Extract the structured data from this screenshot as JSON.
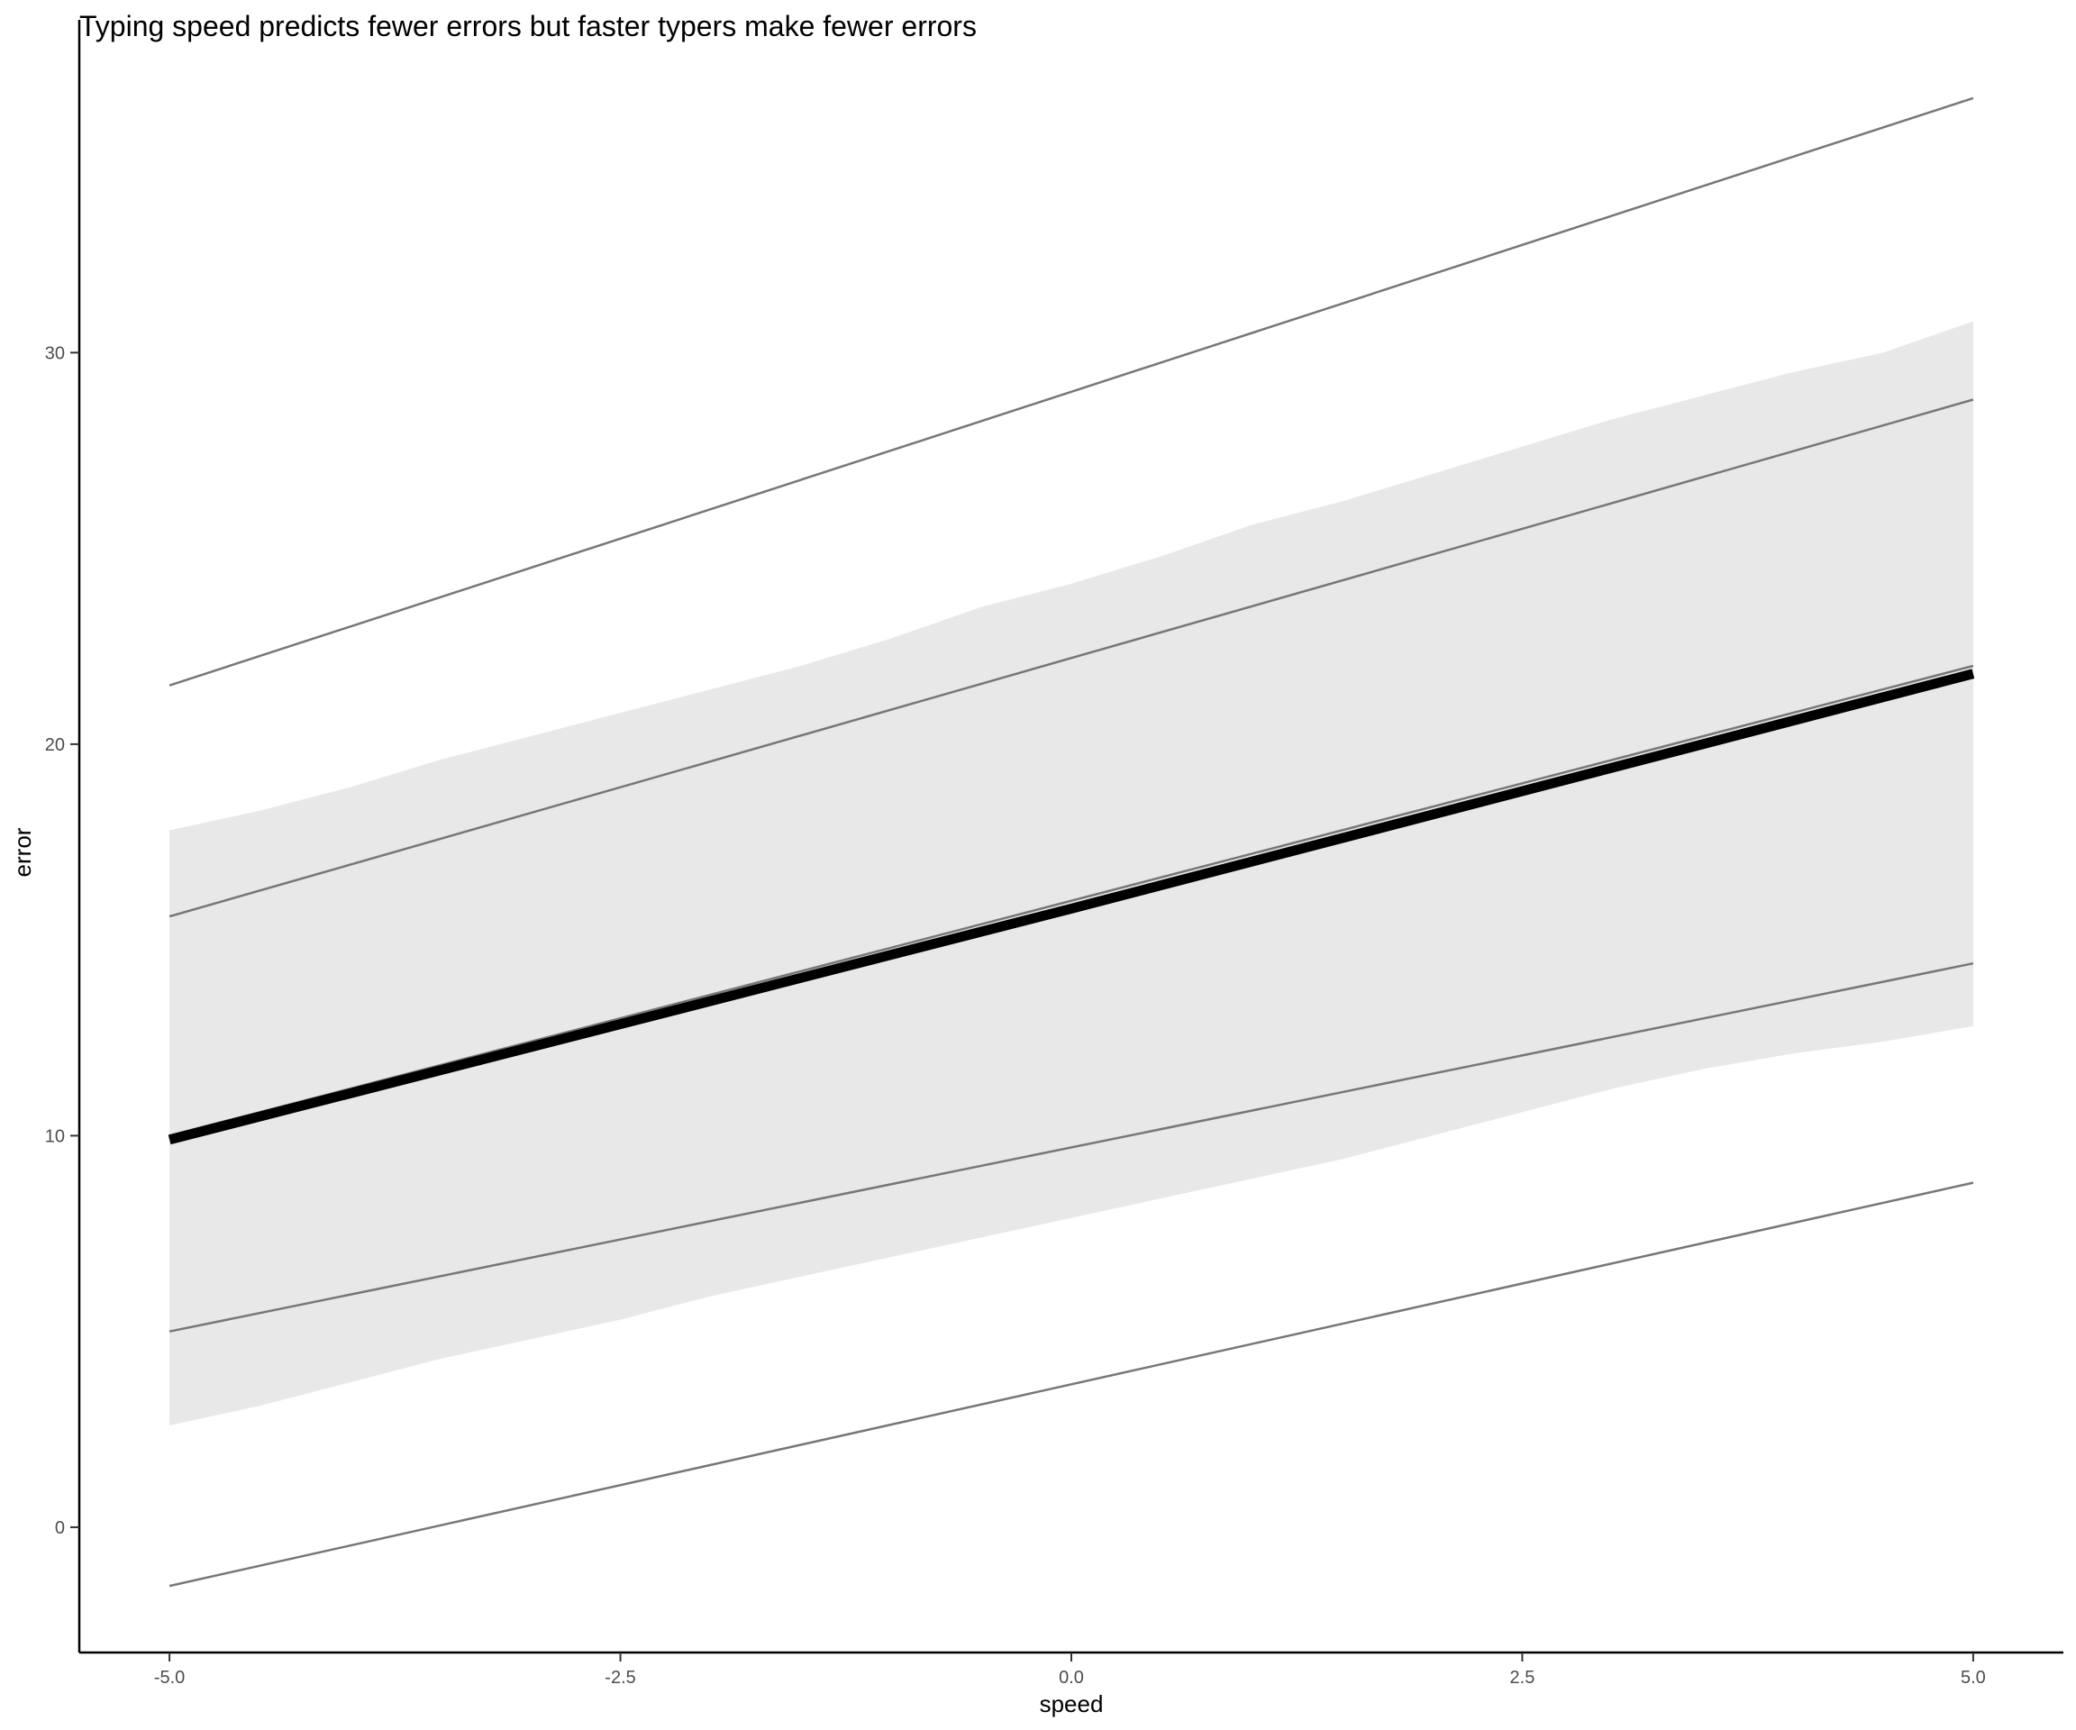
{
  "chart_data": {
    "type": "line",
    "title": "Typing speed predicts fewer errors but faster typers make fewer errors",
    "xlabel": "speed",
    "ylabel": "error",
    "xlim": [
      -5.5,
      5.5
    ],
    "ylim": [
      -3.2,
      38.5
    ],
    "x_ticks": [
      -5.0,
      -2.5,
      0.0,
      2.5,
      5.0
    ],
    "x_tick_labels": [
      "-5.0",
      "-2.5",
      "0.0",
      "2.5",
      "5.0"
    ],
    "y_ticks": [
      0,
      10,
      20,
      30
    ],
    "y_tick_labels": [
      "0",
      "10",
      "20",
      "30"
    ],
    "grid": false,
    "colors": {
      "band": "#e8e8e8",
      "thin_line": "#777777",
      "fit_line": "#000000",
      "axis": "#000000",
      "tick_text": "#4d4d4d"
    },
    "band": {
      "x": [
        -5.0,
        -4.5,
        -4.0,
        -3.5,
        -3.0,
        -2.5,
        -2.0,
        -1.5,
        -1.0,
        -0.5,
        0.0,
        0.5,
        1.0,
        1.5,
        2.0,
        2.5,
        3.0,
        3.5,
        4.0,
        4.5,
        5.0
      ],
      "upper": [
        17.8,
        18.3,
        18.9,
        19.6,
        20.2,
        20.8,
        21.4,
        22.0,
        22.7,
        23.5,
        24.1,
        24.8,
        25.6,
        26.2,
        26.9,
        27.6,
        28.3,
        28.9,
        29.5,
        30.0,
        30.8
      ],
      "lower": [
        2.6,
        3.1,
        3.7,
        4.3,
        4.8,
        5.3,
        5.9,
        6.4,
        6.9,
        7.4,
        7.9,
        8.4,
        8.9,
        9.4,
        10.0,
        10.6,
        11.2,
        11.7,
        12.1,
        12.4,
        12.8
      ]
    },
    "series": [
      {
        "x": [
          -5.0,
          5.0
        ],
        "y": [
          21.5,
          36.5
        ],
        "style": "thin"
      },
      {
        "x": [
          -5.0,
          5.0
        ],
        "y": [
          15.6,
          28.8
        ],
        "style": "thin"
      },
      {
        "x": [
          -5.0,
          5.0
        ],
        "y": [
          10.0,
          22.0
        ],
        "style": "thin"
      },
      {
        "x": [
          -5.0,
          5.0
        ],
        "y": [
          5.0,
          14.4
        ],
        "style": "thin"
      },
      {
        "x": [
          -5.0,
          5.0
        ],
        "y": [
          -1.5,
          8.8
        ],
        "style": "thin"
      },
      {
        "x": [
          -5.0,
          0.0,
          5.0
        ],
        "y": [
          9.9,
          15.8,
          21.8
        ],
        "style": "thick"
      }
    ]
  }
}
